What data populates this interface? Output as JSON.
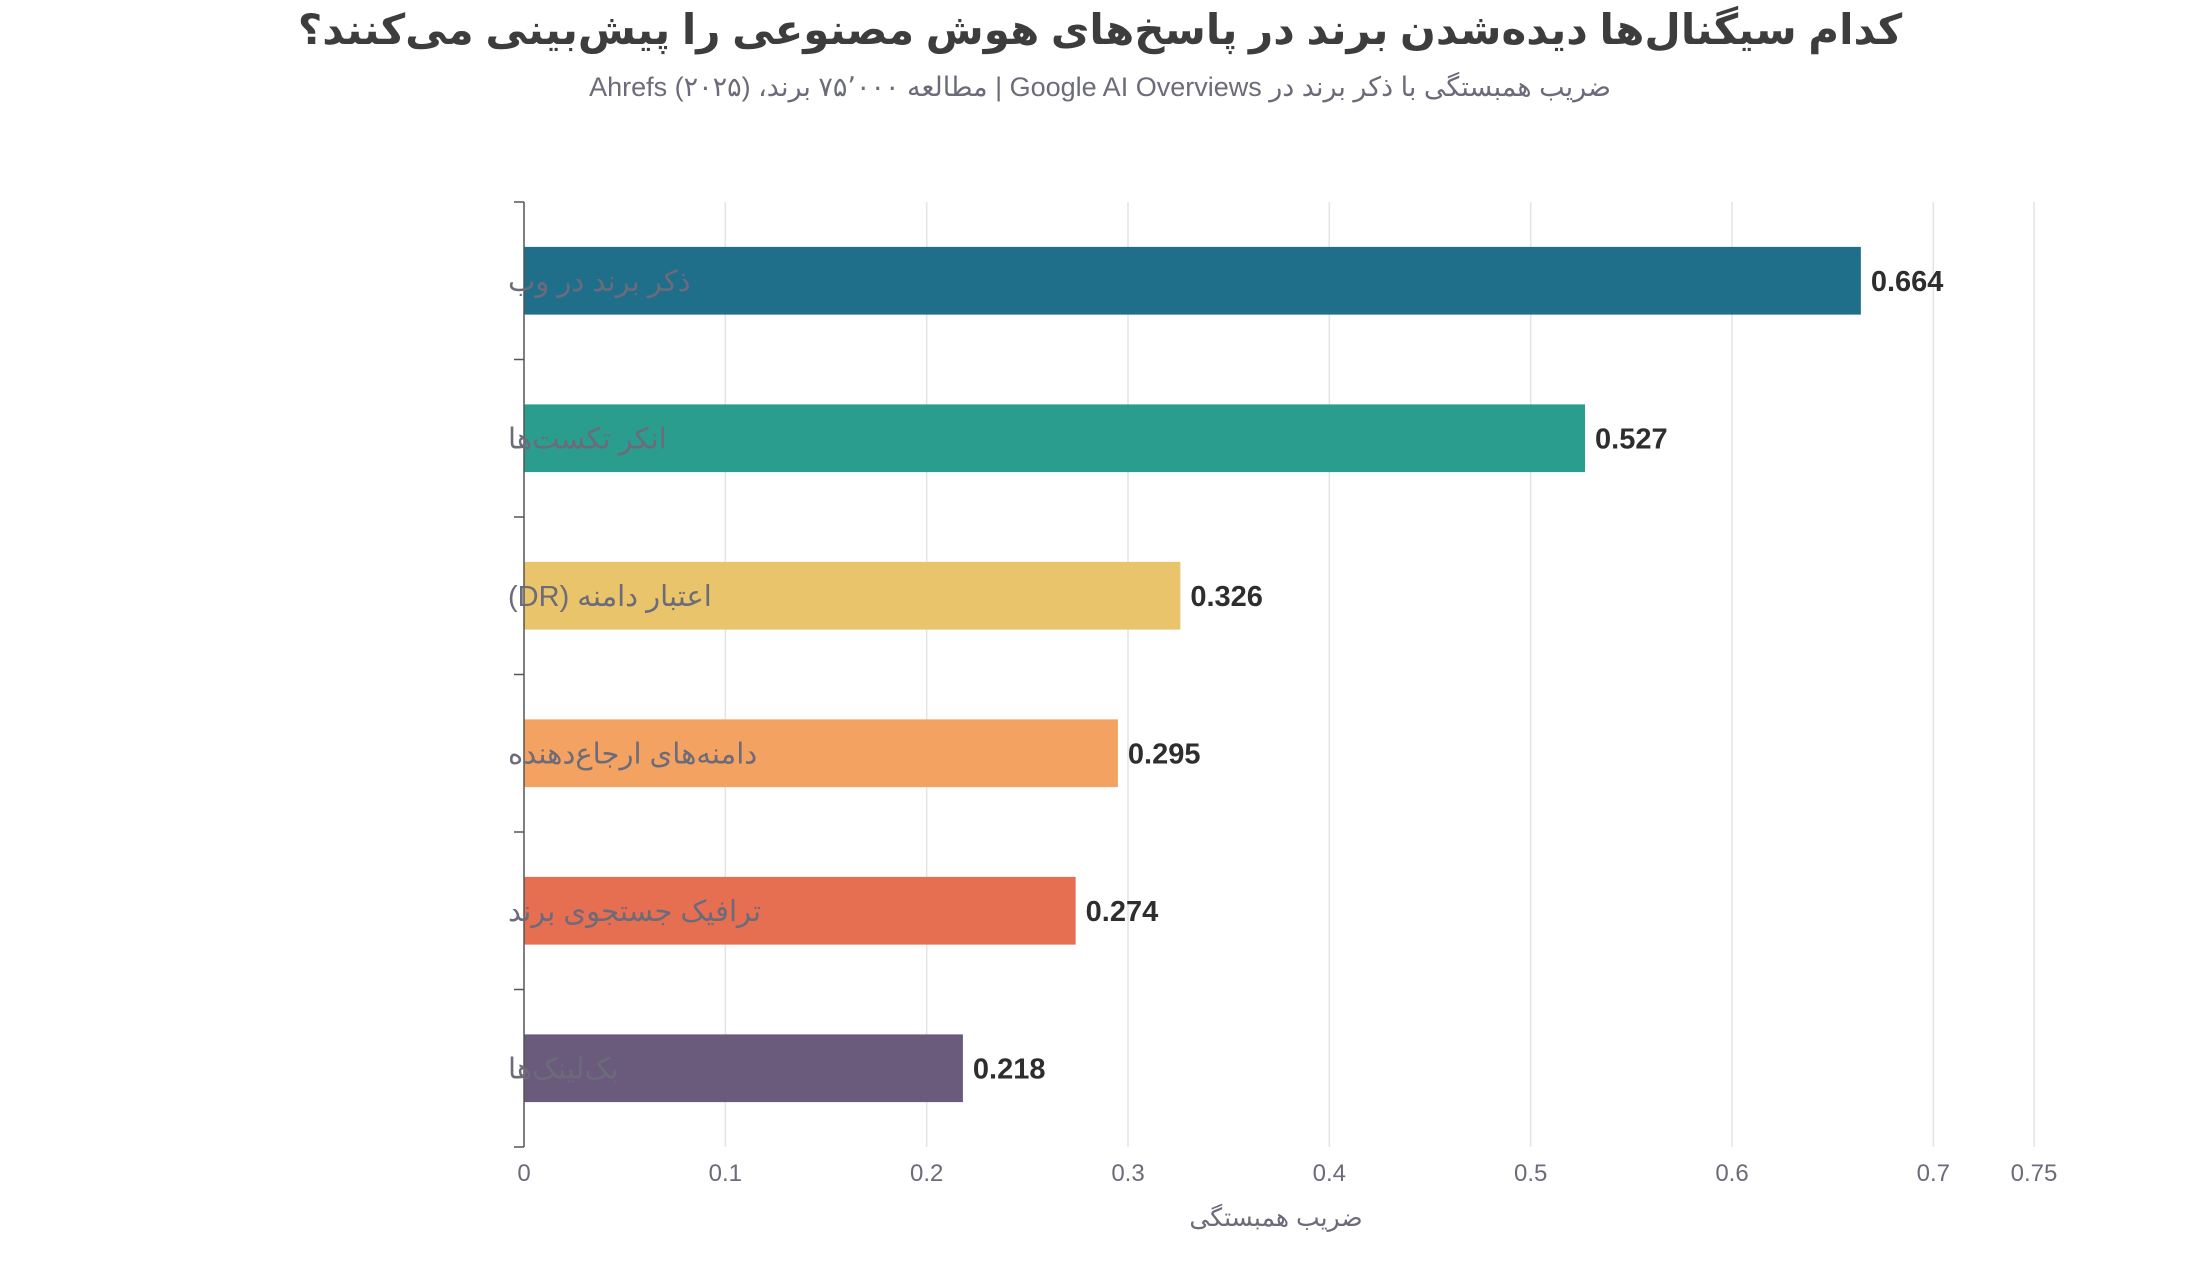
{
  "chart_data": {
    "type": "bar",
    "orientation": "horizontal",
    "title": "کدام سیگنال‌ها دیده‌شدن برند در پاسخ‌های هوش مصنوعی را پیش‌بینی می‌کنند؟",
    "subtitle": "ضریب همبستگی با ذکر برند در Google AI Overviews | مطالعه ۷۵٬۰۰۰ برند، Ahrefs (۲۰۲۵)",
    "xlabel": "ضریب همبستگی",
    "ylabel": "",
    "categories": [
      "ذکر برند در وب",
      "انکر تکست‌ها",
      "اعتبار دامنه (DR)",
      "دامنه‌های ارجاع‌دهنده",
      "ترافیک جستجوی برند",
      "بک‌لینک‌ها"
    ],
    "values": [
      0.664,
      0.527,
      0.326,
      0.295,
      0.274,
      0.218
    ],
    "value_labels": [
      "0.664",
      "0.527",
      "0.326",
      "0.295",
      "0.274",
      "0.218"
    ],
    "colors": [
      "#1f6f8b",
      "#2a9d8f",
      "#e9c46a",
      "#f4a261",
      "#e76f51",
      "#6a5a7b"
    ],
    "xlim": [
      0,
      0.75
    ],
    "ticks": [
      0,
      0.1,
      0.2,
      0.3,
      0.4,
      0.5,
      0.6,
      0.7,
      0.75
    ],
    "tick_labels": [
      "0",
      "0.1",
      "0.2",
      "0.3",
      "0.4",
      "0.5",
      "0.6",
      "0.7",
      "0.75"
    ],
    "grid": true,
    "legend": "none"
  }
}
